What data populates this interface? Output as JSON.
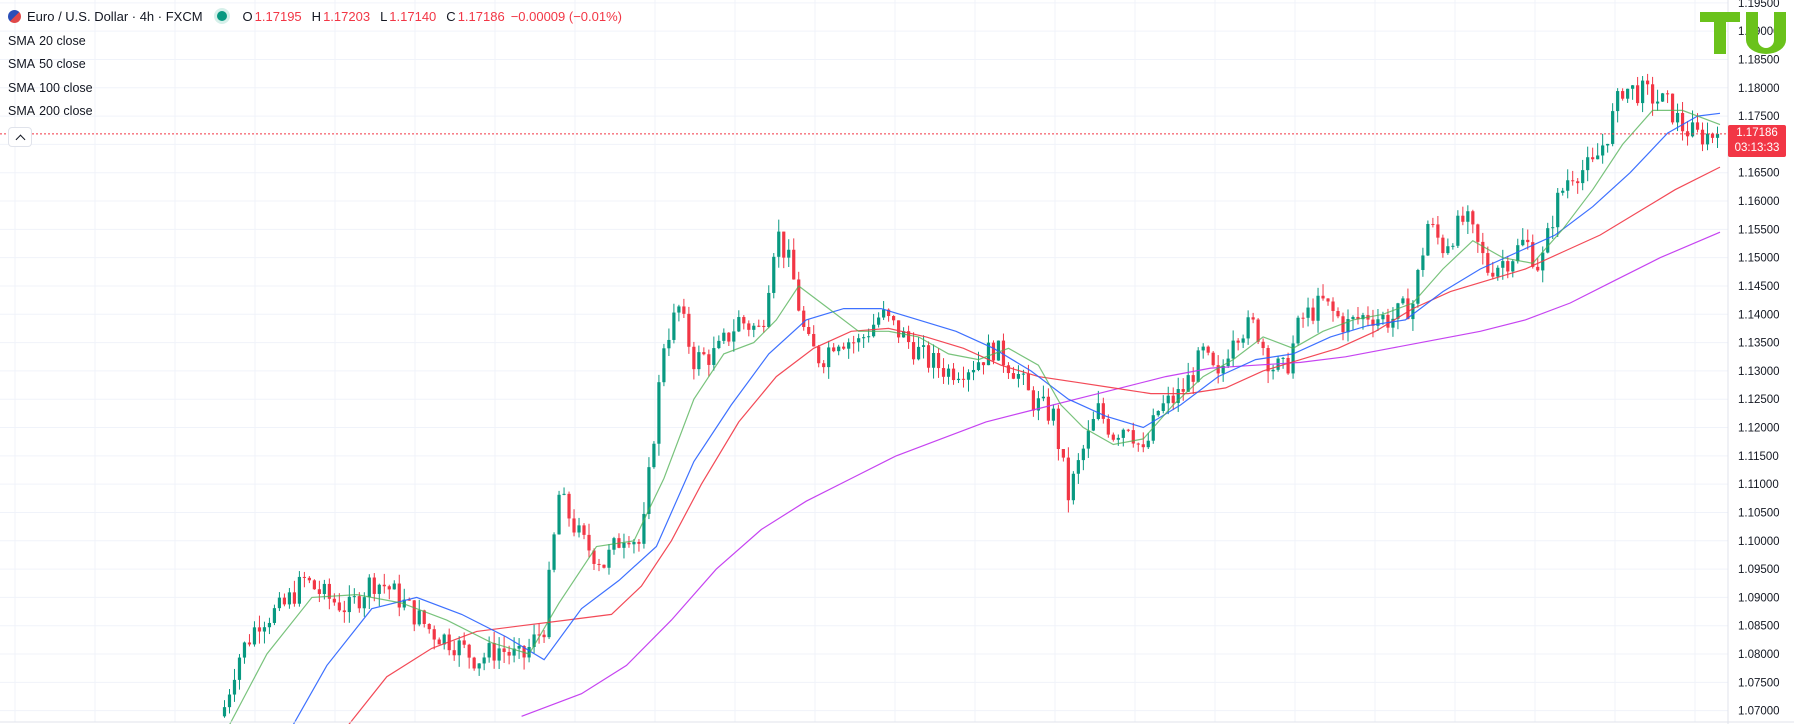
{
  "header": {
    "symbol_title": "Euro / U.S. Dollar · 4h · FXCM",
    "ohlc": {
      "o_label": "O",
      "o_value": "1.17195",
      "h_label": "H",
      "h_value": "1.17203",
      "l_label": "L",
      "l_value": "1.17140",
      "c_label": "C",
      "c_value": "1.17186",
      "change": "−0.00009 (−0.01%)"
    }
  },
  "indicators": [
    {
      "name": "SMA",
      "params": "20 close",
      "color": "#4caf50"
    },
    {
      "name": "SMA",
      "params": "50 close",
      "color": "#2962ff"
    },
    {
      "name": "SMA",
      "params": "100 close",
      "color": "#f23645"
    },
    {
      "name": "SMA",
      "params": "200 close",
      "color": "#c030f0"
    }
  ],
  "last_price": {
    "value": "1.17186",
    "countdown": "03:13:33",
    "color": "#f23645"
  },
  "logo": {
    "text": "TU",
    "color": "#6ac21b"
  },
  "colors": {
    "up": "#089981",
    "down": "#f23645",
    "grid": "#f0f3fa"
  },
  "chart_data": {
    "type": "candlestick",
    "y_axis_ticks": [
      "1.19500",
      "1.19000",
      "1.18500",
      "1.18000",
      "1.17500",
      "1.17000",
      "1.16500",
      "1.16000",
      "1.15500",
      "1.15000",
      "1.14500",
      "1.14000",
      "1.13500",
      "1.13000",
      "1.12500",
      "1.12000",
      "1.11500",
      "1.11000",
      "1.10500",
      "1.10000",
      "1.09500",
      "1.09000",
      "1.08500",
      "1.08000",
      "1.07500",
      "1.07000"
    ],
    "ylim": [
      1.068,
      1.1955
    ],
    "close_path": [
      [
        0.0,
        1.069
      ],
      [
        0.01,
        1.079
      ],
      [
        0.025,
        1.086
      ],
      [
        0.04,
        1.088
      ],
      [
        0.055,
        1.093
      ],
      [
        0.07,
        1.09
      ],
      [
        0.085,
        1.088
      ],
      [
        0.1,
        1.093
      ],
      [
        0.11,
        1.092
      ],
      [
        0.125,
        1.088
      ],
      [
        0.14,
        1.084
      ],
      [
        0.155,
        1.082
      ],
      [
        0.17,
        1.079
      ],
      [
        0.185,
        1.081
      ],
      [
        0.2,
        1.079
      ],
      [
        0.215,
        1.085
      ],
      [
        0.225,
        1.108
      ],
      [
        0.24,
        1.1
      ],
      [
        0.255,
        1.096
      ],
      [
        0.27,
        1.102
      ],
      [
        0.28,
        1.099
      ],
      [
        0.295,
        1.135
      ],
      [
        0.305,
        1.141
      ],
      [
        0.315,
        1.132
      ],
      [
        0.33,
        1.133
      ],
      [
        0.345,
        1.139
      ],
      [
        0.36,
        1.137
      ],
      [
        0.37,
        1.155
      ],
      [
        0.38,
        1.148
      ],
      [
        0.39,
        1.135
      ],
      [
        0.4,
        1.132
      ],
      [
        0.41,
        1.136
      ],
      [
        0.425,
        1.135
      ],
      [
        0.44,
        1.14
      ],
      [
        0.455,
        1.136
      ],
      [
        0.47,
        1.132
      ],
      [
        0.485,
        1.13
      ],
      [
        0.5,
        1.131
      ],
      [
        0.515,
        1.134
      ],
      [
        0.53,
        1.13
      ],
      [
        0.54,
        1.125
      ],
      [
        0.555,
        1.122
      ],
      [
        0.565,
        1.108
      ],
      [
        0.575,
        1.116
      ],
      [
        0.585,
        1.123
      ],
      [
        0.595,
        1.119
      ],
      [
        0.605,
        1.121
      ],
      [
        0.615,
        1.115
      ],
      [
        0.625,
        1.123
      ],
      [
        0.64,
        1.126
      ],
      [
        0.655,
        1.133
      ],
      [
        0.665,
        1.128
      ],
      [
        0.675,
        1.137
      ],
      [
        0.69,
        1.138
      ],
      [
        0.7,
        1.131
      ],
      [
        0.71,
        1.13
      ],
      [
        0.72,
        1.139
      ],
      [
        0.735,
        1.142
      ],
      [
        0.75,
        1.138
      ],
      [
        0.765,
        1.14
      ],
      [
        0.78,
        1.139
      ],
      [
        0.795,
        1.142
      ],
      [
        0.805,
        1.156
      ],
      [
        0.815,
        1.152
      ],
      [
        0.83,
        1.157
      ],
      [
        0.845,
        1.148
      ],
      [
        0.86,
        1.15
      ],
      [
        0.87,
        1.153
      ],
      [
        0.88,
        1.148
      ],
      [
        0.89,
        1.159
      ],
      [
        0.9,
        1.165
      ],
      [
        0.915,
        1.166
      ],
      [
        0.925,
        1.172
      ],
      [
        0.935,
        1.18
      ],
      [
        0.95,
        1.179
      ],
      [
        0.965,
        1.177
      ],
      [
        0.975,
        1.173
      ],
      [
        0.985,
        1.1715
      ],
      [
        1.0,
        1.1719
      ]
    ],
    "sma20_path": [
      [
        0.0,
        1.065
      ],
      [
        0.03,
        1.08
      ],
      [
        0.06,
        1.09
      ],
      [
        0.09,
        1.0905
      ],
      [
        0.12,
        1.089
      ],
      [
        0.15,
        1.086
      ],
      [
        0.18,
        1.082
      ],
      [
        0.205,
        1.08
      ],
      [
        0.225,
        1.089
      ],
      [
        0.25,
        1.099
      ],
      [
        0.275,
        1.1
      ],
      [
        0.295,
        1.111
      ],
      [
        0.315,
        1.125
      ],
      [
        0.335,
        1.133
      ],
      [
        0.355,
        1.135
      ],
      [
        0.37,
        1.139
      ],
      [
        0.385,
        1.145
      ],
      [
        0.405,
        1.141
      ],
      [
        0.425,
        1.137
      ],
      [
        0.445,
        1.137
      ],
      [
        0.465,
        1.136
      ],
      [
        0.485,
        1.133
      ],
      [
        0.505,
        1.132
      ],
      [
        0.525,
        1.134
      ],
      [
        0.545,
        1.131
      ],
      [
        0.56,
        1.124
      ],
      [
        0.575,
        1.12
      ],
      [
        0.595,
        1.117
      ],
      [
        0.615,
        1.118
      ],
      [
        0.635,
        1.124
      ],
      [
        0.655,
        1.129
      ],
      [
        0.675,
        1.132
      ],
      [
        0.695,
        1.136
      ],
      [
        0.715,
        1.134
      ],
      [
        0.735,
        1.137
      ],
      [
        0.755,
        1.139
      ],
      [
        0.775,
        1.14
      ],
      [
        0.795,
        1.142
      ],
      [
        0.815,
        1.148
      ],
      [
        0.835,
        1.153
      ],
      [
        0.855,
        1.15
      ],
      [
        0.875,
        1.149
      ],
      [
        0.895,
        1.155
      ],
      [
        0.915,
        1.162
      ],
      [
        0.935,
        1.17
      ],
      [
        0.955,
        1.176
      ],
      [
        0.975,
        1.176
      ],
      [
        1.0,
        1.1735
      ]
    ],
    "sma50_path": [
      [
        0.04,
        1.064
      ],
      [
        0.07,
        1.078
      ],
      [
        0.1,
        1.088
      ],
      [
        0.13,
        1.09
      ],
      [
        0.16,
        1.087
      ],
      [
        0.19,
        1.083
      ],
      [
        0.215,
        1.079
      ],
      [
        0.24,
        1.088
      ],
      [
        0.265,
        1.093
      ],
      [
        0.29,
        1.099
      ],
      [
        0.315,
        1.114
      ],
      [
        0.34,
        1.124
      ],
      [
        0.365,
        1.133
      ],
      [
        0.39,
        1.139
      ],
      [
        0.415,
        1.141
      ],
      [
        0.44,
        1.141
      ],
      [
        0.465,
        1.139
      ],
      [
        0.49,
        1.137
      ],
      [
        0.515,
        1.134
      ],
      [
        0.54,
        1.13
      ],
      [
        0.565,
        1.125
      ],
      [
        0.59,
        1.122
      ],
      [
        0.615,
        1.12
      ],
      [
        0.64,
        1.124
      ],
      [
        0.665,
        1.129
      ],
      [
        0.69,
        1.132
      ],
      [
        0.715,
        1.133
      ],
      [
        0.74,
        1.136
      ],
      [
        0.765,
        1.138
      ],
      [
        0.79,
        1.139
      ],
      [
        0.815,
        1.144
      ],
      [
        0.84,
        1.148
      ],
      [
        0.865,
        1.151
      ],
      [
        0.89,
        1.154
      ],
      [
        0.915,
        1.159
      ],
      [
        0.94,
        1.165
      ],
      [
        0.965,
        1.172
      ],
      [
        0.985,
        1.175
      ],
      [
        1.0,
        1.1755
      ]
    ],
    "sma100_path": [
      [
        0.08,
        1.066
      ],
      [
        0.11,
        1.076
      ],
      [
        0.14,
        1.081
      ],
      [
        0.17,
        1.084
      ],
      [
        0.2,
        1.085
      ],
      [
        0.23,
        1.086
      ],
      [
        0.26,
        1.087
      ],
      [
        0.28,
        1.092
      ],
      [
        0.3,
        1.1
      ],
      [
        0.32,
        1.11
      ],
      [
        0.345,
        1.121
      ],
      [
        0.37,
        1.129
      ],
      [
        0.395,
        1.134
      ],
      [
        0.42,
        1.137
      ],
      [
        0.445,
        1.1375
      ],
      [
        0.47,
        1.136
      ],
      [
        0.495,
        1.134
      ],
      [
        0.52,
        1.131
      ],
      [
        0.545,
        1.129
      ],
      [
        0.57,
        1.128
      ],
      [
        0.595,
        1.127
      ],
      [
        0.62,
        1.126
      ],
      [
        0.645,
        1.126
      ],
      [
        0.67,
        1.127
      ],
      [
        0.695,
        1.13
      ],
      [
        0.72,
        1.132
      ],
      [
        0.745,
        1.134
      ],
      [
        0.77,
        1.137
      ],
      [
        0.795,
        1.141
      ],
      [
        0.82,
        1.144
      ],
      [
        0.845,
        1.146
      ],
      [
        0.87,
        1.148
      ],
      [
        0.895,
        1.151
      ],
      [
        0.92,
        1.154
      ],
      [
        0.945,
        1.158
      ],
      [
        0.97,
        1.162
      ],
      [
        1.0,
        1.166
      ]
    ],
    "sma200_path": [
      [
        0.2,
        1.069
      ],
      [
        0.24,
        1.073
      ],
      [
        0.27,
        1.078
      ],
      [
        0.3,
        1.086
      ],
      [
        0.33,
        1.095
      ],
      [
        0.36,
        1.102
      ],
      [
        0.39,
        1.107
      ],
      [
        0.42,
        1.111
      ],
      [
        0.45,
        1.115
      ],
      [
        0.48,
        1.118
      ],
      [
        0.51,
        1.121
      ],
      [
        0.54,
        1.123
      ],
      [
        0.57,
        1.125
      ],
      [
        0.6,
        1.127
      ],
      [
        0.63,
        1.129
      ],
      [
        0.66,
        1.1305
      ],
      [
        0.69,
        1.131
      ],
      [
        0.72,
        1.1315
      ],
      [
        0.75,
        1.1325
      ],
      [
        0.78,
        1.134
      ],
      [
        0.81,
        1.1355
      ],
      [
        0.84,
        1.137
      ],
      [
        0.87,
        1.139
      ],
      [
        0.9,
        1.142
      ],
      [
        0.93,
        1.146
      ],
      [
        0.96,
        1.15
      ],
      [
        1.0,
        1.1545
      ]
    ]
  }
}
